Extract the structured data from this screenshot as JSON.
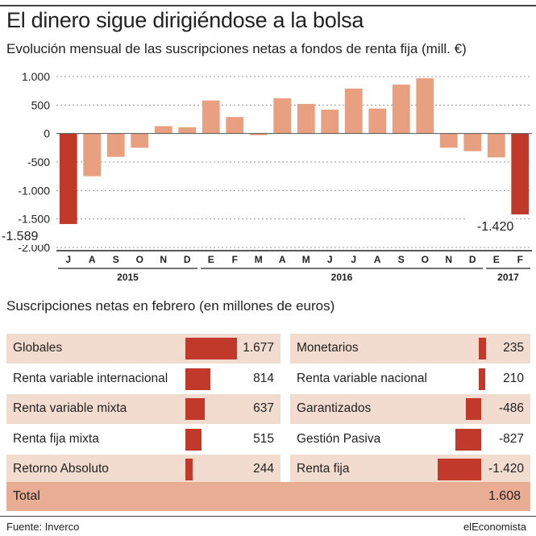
{
  "chart_data": {
    "type": "bar",
    "title": "El dinero sigue dirigiéndose a la bolsa",
    "subtitle": "Evolución mensual de las suscripciones netas a fondos de renta fija (mill. €)",
    "categories": [
      "J",
      "A",
      "S",
      "O",
      "N",
      "D",
      "E",
      "F",
      "M",
      "A",
      "M",
      "J",
      "J",
      "A",
      "S",
      "O",
      "N",
      "D",
      "E",
      "F"
    ],
    "years": [
      {
        "label": "2015",
        "from": 0,
        "to": 5
      },
      {
        "label": "2016",
        "from": 6,
        "to": 17
      },
      {
        "label": "2017",
        "from": 18,
        "to": 19
      }
    ],
    "values": [
      -1589,
      -750,
      -410,
      -250,
      130,
      110,
      580,
      290,
      -30,
      620,
      520,
      420,
      790,
      440,
      860,
      970,
      -250,
      -310,
      -420,
      -1420
    ],
    "ylim": [
      -2000,
      1000
    ],
    "yticks": [
      1000,
      500,
      0,
      -500,
      -1000,
      -1500,
      -2000
    ],
    "ytick_labels": [
      "1.000",
      "500",
      "0",
      "-500",
      "-1.000",
      "-1.500",
      "-2.000"
    ],
    "annotations": [
      {
        "index": 0,
        "text": "-1.589"
      },
      {
        "index": 19,
        "text": "-1.420"
      }
    ],
    "highlight_indices": [
      0,
      19
    ],
    "grid": true
  },
  "colors": {
    "bar_normal": "#e9a080",
    "bar_highlight": "#c0392b",
    "table_bar": "#c0392b",
    "row_shade": "#f2dccf",
    "total_bg": "#e9ad93"
  },
  "section_title": "Suscripciones netas en febrero (en millones de euros)",
  "table_left": [
    {
      "label": "Globales",
      "value": "1.677",
      "num": 1677
    },
    {
      "label": "Renta variable internacional",
      "value": "814",
      "num": 814
    },
    {
      "label": "Renta variable mixta",
      "value": "637",
      "num": 637
    },
    {
      "label": "Renta fija mixta",
      "value": "515",
      "num": 515
    },
    {
      "label": "Retorno Absoluto",
      "value": "244",
      "num": 244
    }
  ],
  "table_right": [
    {
      "label": "Monetarios",
      "value": "235",
      "num": 235
    },
    {
      "label": "Renta variable nacional",
      "value": "210",
      "num": 210
    },
    {
      "label": "Garantizados",
      "value": "-486",
      "num": -486
    },
    {
      "label": "Gestión Pasiva",
      "value": "-827",
      "num": -827
    },
    {
      "label": "Renta fija",
      "value": "-1.420",
      "num": -1420
    }
  ],
  "total": {
    "label": "Total",
    "value": "1.608"
  },
  "footer": {
    "source": "Fuente: Inverco",
    "brand": "elEconomista"
  }
}
